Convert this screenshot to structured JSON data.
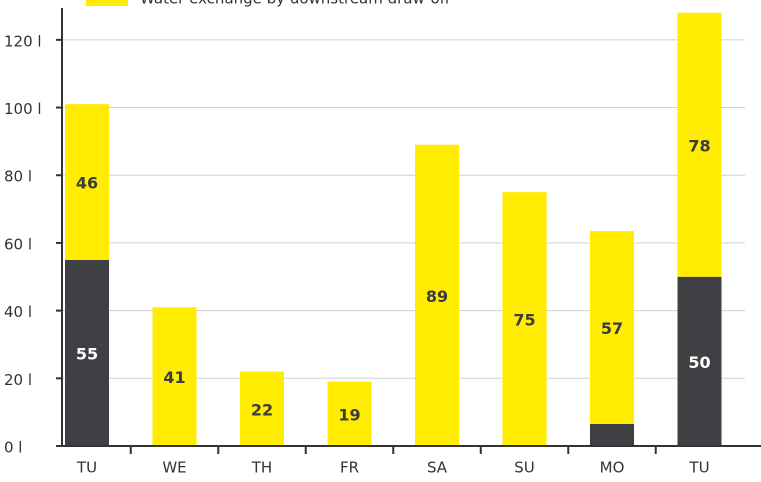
{
  "chart_data": {
    "type": "bar",
    "stacked": true,
    "categories": [
      "TU",
      "WE",
      "TH",
      "FR",
      "SA",
      "SU",
      "MO",
      "TU"
    ],
    "series": [
      {
        "color": "#404044",
        "values": [
          55,
          0,
          0,
          0,
          0,
          0,
          6.5,
          50
        ],
        "value_labels": [
          "55",
          null,
          null,
          null,
          null,
          null,
          null,
          "50"
        ]
      },
      {
        "name": "Water exchange by downstream draw-off",
        "color": "#ffec00",
        "values": [
          46,
          41,
          22,
          19,
          89,
          75,
          57,
          78
        ]
      }
    ],
    "ylim": [
      0,
      130
    ],
    "yticks": [
      {
        "value": 0,
        "label": "0 l"
      },
      {
        "value": 20,
        "label": "20 l"
      },
      {
        "value": 40,
        "label": "40 l"
      },
      {
        "value": 60,
        "label": "60 l"
      },
      {
        "value": 80,
        "label": "80 l"
      },
      {
        "value": 100,
        "label": "100 l"
      },
      {
        "value": 120,
        "label": "120 l"
      }
    ],
    "grid": true
  }
}
